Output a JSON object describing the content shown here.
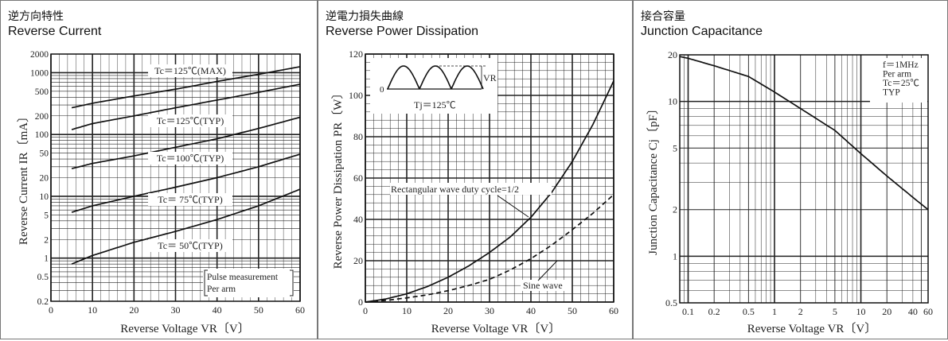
{
  "chart_data": [
    {
      "type": "line",
      "title_jp": "逆方向特性",
      "title": "Reverse Current",
      "xlabel": "Reverse Voltage  VR〔V〕",
      "ylabel": "Reverse Current  IR〔mA〕",
      "xlim": [
        0,
        60
      ],
      "ylim": [
        0.2,
        2000
      ],
      "yscale": "log",
      "grid": true,
      "xticks": [
        0,
        10,
        20,
        30,
        40,
        50,
        60
      ],
      "yticks": [
        0.2,
        0.5,
        1,
        2,
        5,
        10,
        20,
        50,
        100,
        200,
        500,
        1000,
        2000
      ],
      "yticklabels": [
        "0.2",
        "0.5",
        "1",
        "2",
        "5",
        "10",
        "20",
        "50",
        "100",
        "200",
        "500",
        "1000",
        "2000"
      ],
      "series": [
        {
          "name": "Tc＝125℃(MAX)",
          "x": [
            5,
            10,
            20,
            30,
            40,
            50,
            60
          ],
          "y": [
            270,
            320,
            420,
            540,
            720,
            940,
            1250
          ]
        },
        {
          "name": "Tc＝125℃(TYP)",
          "x": [
            5,
            10,
            20,
            30,
            40,
            50,
            60
          ],
          "y": [
            120,
            150,
            200,
            270,
            360,
            480,
            650
          ]
        },
        {
          "name": "Tc＝100℃(TYP)",
          "x": [
            5,
            10,
            20,
            30,
            40,
            50,
            60
          ],
          "y": [
            28,
            34,
            45,
            62,
            85,
            125,
            190
          ]
        },
        {
          "name": "Tc＝ 75℃(TYP)",
          "x": [
            5,
            10,
            20,
            30,
            40,
            50,
            60
          ],
          "y": [
            5.5,
            7,
            10,
            14,
            20,
            30,
            48
          ]
        },
        {
          "name": "Tc＝ 50℃(TYP)",
          "x": [
            5,
            10,
            20,
            30,
            40,
            50,
            60
          ],
          "y": [
            0.8,
            1.1,
            1.8,
            2.7,
            4.2,
            7,
            13
          ]
        }
      ],
      "annotations": [
        "Pulse measurement",
        "Per arm"
      ]
    },
    {
      "type": "line",
      "title_jp": "逆電力損失曲線",
      "title": "Reverse Power Dissipation",
      "xlabel": "Reverse Voltage  VR〔V〕",
      "ylabel": "Reverse Power Dissipation  PR〔W〕",
      "xlim": [
        0,
        60
      ],
      "ylim": [
        0,
        120
      ],
      "grid": true,
      "xticks": [
        0,
        10,
        20,
        30,
        40,
        50,
        60
      ],
      "yticks": [
        0,
        20,
        40,
        60,
        80,
        100,
        120
      ],
      "series": [
        {
          "name": "Rectangular wave duty cycle=1/2",
          "style": "solid",
          "x": [
            0,
            5,
            10,
            15,
            20,
            25,
            30,
            35,
            40,
            45,
            50,
            55,
            60
          ],
          "y": [
            0,
            1.5,
            4,
            7.5,
            12,
            17.5,
            24,
            31.5,
            41,
            53,
            68,
            86,
            107
          ]
        },
        {
          "name": "Sine wave",
          "style": "dashed",
          "x": [
            0,
            5,
            10,
            15,
            20,
            25,
            30,
            35,
            40,
            45,
            50,
            55,
            60
          ],
          "y": [
            0,
            0.8,
            2,
            3.5,
            5.5,
            8,
            11,
            15.5,
            21,
            27.5,
            35,
            43,
            52
          ]
        }
      ],
      "inset": {
        "label_v": "VR",
        "label_zero": "0",
        "label_tj": "Tj＝125℃"
      }
    },
    {
      "type": "line",
      "title_jp": "接合容量",
      "title": "Junction Capacitance",
      "xlabel": "Reverse Voltage  VR〔V〕",
      "ylabel": "Junction Capacitance  Cj〔pF〕",
      "xlim": [
        0.08,
        60
      ],
      "ylim": [
        0.5,
        20
      ],
      "xscale": "log",
      "yscale": "log",
      "grid": true,
      "xticks": [
        0.1,
        0.2,
        0.5,
        1,
        2,
        5,
        10,
        20,
        40,
        60
      ],
      "xticklabels": [
        "0.1",
        "0.2",
        "0.5",
        "1",
        "2",
        "5",
        "10",
        "20",
        "40",
        "60"
      ],
      "yticks": [
        0.5,
        1,
        2,
        5,
        10,
        20
      ],
      "yticklabels": [
        "0.5",
        "1",
        "2",
        "5",
        "10",
        "20"
      ],
      "series": [
        {
          "name": "Cj",
          "x": [
            0.08,
            0.1,
            0.2,
            0.5,
            1,
            2,
            5,
            10,
            20,
            40,
            60
          ],
          "y": [
            19.5,
            19,
            17,
            14.5,
            11.5,
            9,
            6.5,
            4.6,
            3.3,
            2.4,
            2.0
          ]
        }
      ],
      "legend_text": [
        "f＝1MHz",
        "Per arm",
        "Tc＝25℃",
        "TYP"
      ],
      "legend_position": "top-right"
    }
  ]
}
